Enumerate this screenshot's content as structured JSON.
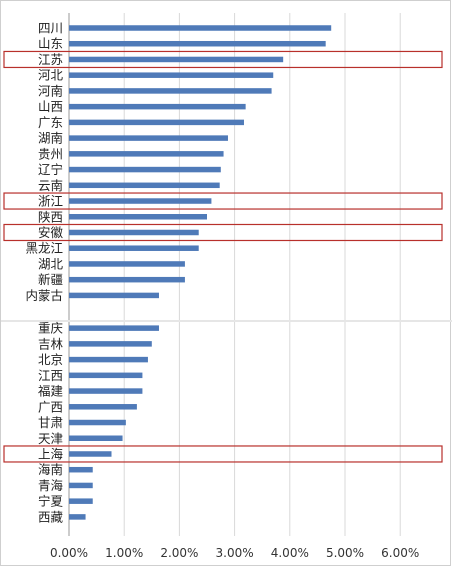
{
  "chart_data": {
    "type": "bar",
    "orientation": "horizontal",
    "title": "",
    "xlabel": "",
    "ylabel": "",
    "categories": [
      "四川",
      "山东",
      "江苏",
      "河北",
      "河南",
      "山西",
      "广东",
      "湖南",
      "贵州",
      "辽宁",
      "云南",
      "浙江",
      "陕西",
      "安徽",
      "黑龙江",
      "湖北",
      "新疆",
      "内蒙古",
      "重庆",
      "吉林",
      "北京",
      "江西",
      "福建",
      "广西",
      "甘肃",
      "天津",
      "上海",
      "海南",
      "青海",
      "宁夏",
      "西藏"
    ],
    "values": [
      4.75,
      4.65,
      3.88,
      3.7,
      3.67,
      3.2,
      3.17,
      2.88,
      2.8,
      2.75,
      2.73,
      2.58,
      2.5,
      2.35,
      2.35,
      2.1,
      2.1,
      1.63,
      1.63,
      1.5,
      1.43,
      1.33,
      1.33,
      1.23,
      1.03,
      0.97,
      0.77,
      0.43,
      0.43,
      0.43,
      0.3
    ],
    "highlighted": [
      "江苏",
      "浙江",
      "安徽",
      "上海"
    ],
    "xlim": [
      0,
      6.5
    ],
    "x_ticks": [
      "0.00%",
      "1.00%",
      "2.00%",
      "3.00%",
      "4.00%",
      "5.00%",
      "6.00%"
    ],
    "grid": true,
    "legend": "none",
    "colors": {
      "bar": "#4f7ab8",
      "highlight": "#b8302b",
      "grid": "#d9d9d9",
      "axis": "#999999"
    }
  }
}
